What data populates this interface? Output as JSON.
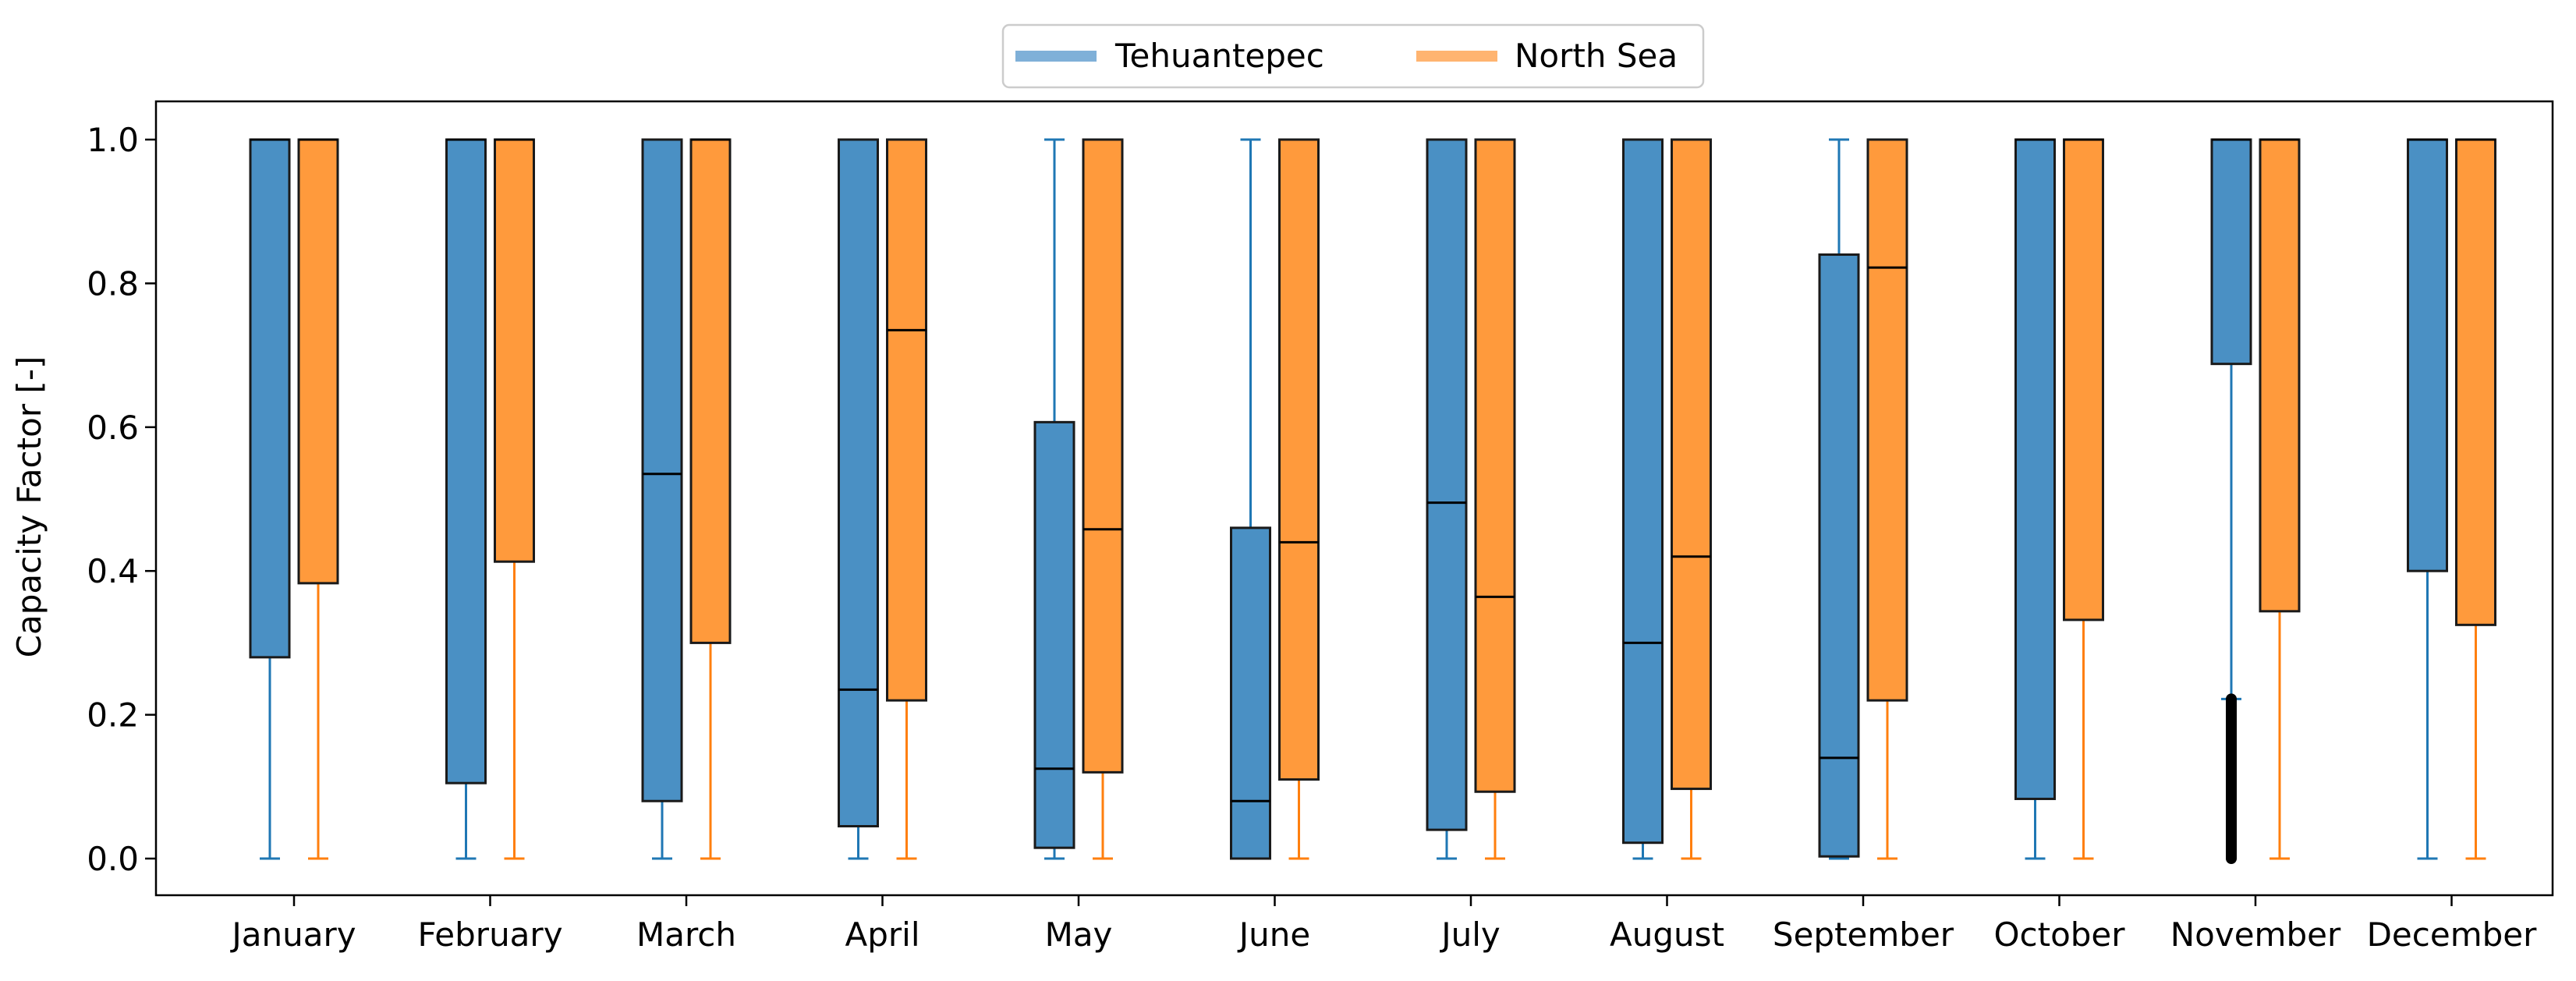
{
  "chart_data": {
    "type": "boxplot",
    "ylabel": "Capacity Factor [-]",
    "ylim": [
      -0.05,
      1.05
    ],
    "yticks": [
      0.0,
      0.2,
      0.4,
      0.6,
      0.8,
      1.0
    ],
    "ytick_labels": [
      "0.0",
      "0.2",
      "0.4",
      "0.6",
      "0.8",
      "1.0"
    ],
    "categories": [
      "January",
      "February",
      "March",
      "April",
      "May",
      "June",
      "July",
      "August",
      "September",
      "October",
      "November",
      "December"
    ],
    "legend": {
      "position": "top-center",
      "entries": [
        "Tehuantepec",
        "North Sea"
      ]
    },
    "series": [
      {
        "name": "Tehuantepec",
        "color": "#1f77b4",
        "box_color": "#4a90c4",
        "boxes": [
          {
            "whislo": 0.0,
            "q1": 0.28,
            "med": 1.0,
            "q3": 1.0,
            "whishi": 1.0
          },
          {
            "whislo": 0.0,
            "q1": 0.105,
            "med": 1.0,
            "q3": 1.0,
            "whishi": 1.0
          },
          {
            "whislo": 0.0,
            "q1": 0.08,
            "med": 0.535,
            "q3": 1.0,
            "whishi": 1.0
          },
          {
            "whislo": 0.0,
            "q1": 0.045,
            "med": 0.235,
            "q3": 1.0,
            "whishi": 1.0
          },
          {
            "whislo": 0.0,
            "q1": 0.015,
            "med": 0.125,
            "q3": 0.607,
            "whishi": 1.0
          },
          {
            "whislo": 0.0,
            "q1": 0.0,
            "med": 0.08,
            "q3": 0.46,
            "whishi": 1.0
          },
          {
            "whislo": 0.0,
            "q1": 0.04,
            "med": 0.495,
            "q3": 1.0,
            "whishi": 1.0
          },
          {
            "whislo": 0.0,
            "q1": 0.022,
            "med": 0.3,
            "q3": 1.0,
            "whishi": 1.0
          },
          {
            "whislo": 0.0,
            "q1": 0.003,
            "med": 0.14,
            "q3": 0.84,
            "whishi": 1.0
          },
          {
            "whislo": 0.0,
            "q1": 0.083,
            "med": 1.0,
            "q3": 1.0,
            "whishi": 1.0
          },
          {
            "whislo": 0.222,
            "q1": 0.688,
            "med": 1.0,
            "q3": 1.0,
            "whishi": 1.0,
            "fliers_range": [
              0.0,
              0.222
            ]
          },
          {
            "whislo": 0.0,
            "q1": 0.4,
            "med": 1.0,
            "q3": 1.0,
            "whishi": 1.0
          }
        ]
      },
      {
        "name": "North Sea",
        "color": "#ff7f0e",
        "box_color": "#ff9a3c",
        "boxes": [
          {
            "whislo": 0.0,
            "q1": 0.383,
            "med": 1.0,
            "q3": 1.0,
            "whishi": 1.0
          },
          {
            "whislo": 0.0,
            "q1": 0.413,
            "med": 1.0,
            "q3": 1.0,
            "whishi": 1.0
          },
          {
            "whislo": 0.0,
            "q1": 0.3,
            "med": 1.0,
            "q3": 1.0,
            "whishi": 1.0
          },
          {
            "whislo": 0.0,
            "q1": 0.22,
            "med": 0.735,
            "q3": 1.0,
            "whishi": 1.0
          },
          {
            "whislo": 0.0,
            "q1": 0.12,
            "med": 0.458,
            "q3": 1.0,
            "whishi": 1.0
          },
          {
            "whislo": 0.0,
            "q1": 0.11,
            "med": 0.44,
            "q3": 1.0,
            "whishi": 1.0
          },
          {
            "whislo": 0.0,
            "q1": 0.093,
            "med": 0.364,
            "q3": 1.0,
            "whishi": 1.0
          },
          {
            "whislo": 0.0,
            "q1": 0.097,
            "med": 0.42,
            "q3": 1.0,
            "whishi": 1.0
          },
          {
            "whislo": 0.0,
            "q1": 0.22,
            "med": 0.822,
            "q3": 1.0,
            "whishi": 1.0
          },
          {
            "whislo": 0.0,
            "q1": 0.332,
            "med": 1.0,
            "q3": 1.0,
            "whishi": 1.0
          },
          {
            "whislo": 0.0,
            "q1": 0.344,
            "med": 1.0,
            "q3": 1.0,
            "whishi": 1.0
          },
          {
            "whislo": 0.0,
            "q1": 0.325,
            "med": 1.0,
            "q3": 1.0,
            "whishi": 1.0
          }
        ]
      }
    ]
  }
}
